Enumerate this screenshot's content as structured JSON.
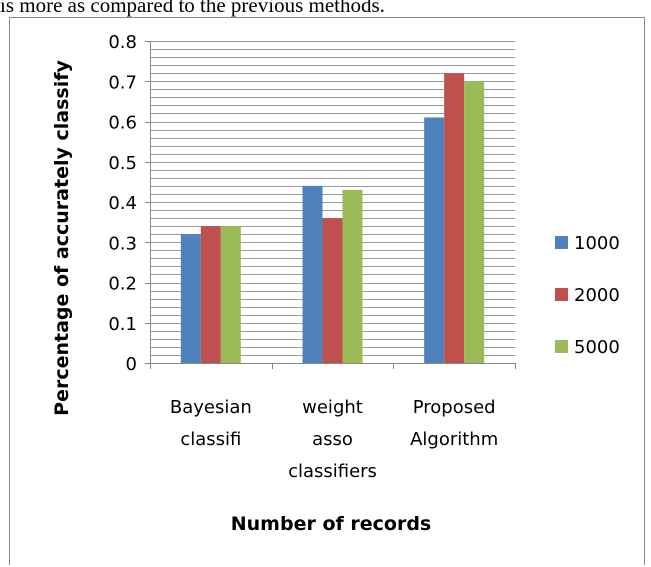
{
  "caption_line": "is more as compared to the previous methods.",
  "chart_data": {
    "type": "bar",
    "categories": [
      [
        "Bayesian",
        "classifi"
      ],
      [
        "weight",
        "asso",
        "classifiers"
      ],
      [
        "Proposed",
        "Algorithm"
      ]
    ],
    "series": [
      {
        "name": "1000",
        "color": "#4F81BD",
        "values": [
          0.32,
          0.44,
          0.61
        ]
      },
      {
        "name": "2000",
        "color": "#C0504D",
        "values": [
          0.34,
          0.36,
          0.72
        ]
      },
      {
        "name": "5000",
        "color": "#9BBB59",
        "values": [
          0.34,
          0.43,
          0.7
        ]
      }
    ],
    "ylim": [
      0,
      0.8
    ],
    "yticks": [
      "0",
      "0.1",
      "0.2",
      "0.3",
      "0.4",
      "0.5",
      "0.6",
      "0.7",
      "0.8"
    ],
    "grid_minor_step": 0.02,
    "ylabel": "Percentage of accurately classify",
    "xlabel": "Number of records",
    "legend": "right"
  }
}
